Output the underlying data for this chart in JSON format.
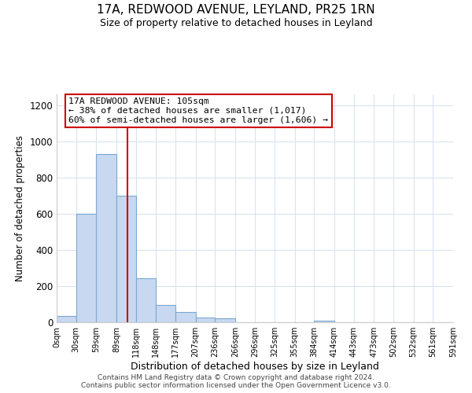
{
  "title": "17A, REDWOOD AVENUE, LEYLAND, PR25 1RN",
  "subtitle": "Size of property relative to detached houses in Leyland",
  "xlabel": "Distribution of detached houses by size in Leyland",
  "ylabel": "Number of detached properties",
  "bar_color": "#c8d8f0",
  "bar_edge_color": "#7aa8d0",
  "bin_edges": [
    0,
    29,
    59,
    89,
    118,
    148,
    177,
    207,
    236,
    266,
    296,
    325,
    355,
    384,
    414,
    443,
    473,
    502,
    532,
    561,
    591
  ],
  "bar_heights": [
    35,
    600,
    930,
    700,
    245,
    95,
    55,
    25,
    20,
    0,
    0,
    0,
    0,
    10,
    0,
    0,
    0,
    0,
    0,
    0
  ],
  "tick_labels": [
    "0sqm",
    "30sqm",
    "59sqm",
    "89sqm",
    "118sqm",
    "148sqm",
    "177sqm",
    "207sqm",
    "236sqm",
    "266sqm",
    "296sqm",
    "325sqm",
    "355sqm",
    "384sqm",
    "414sqm",
    "443sqm",
    "473sqm",
    "502sqm",
    "532sqm",
    "561sqm",
    "591sqm"
  ],
  "vline_x": 105,
  "vline_color": "#cc0000",
  "annotation_line1": "17A REDWOOD AVENUE: 105sqm",
  "annotation_line2": "← 38% of detached houses are smaller (1,017)",
  "annotation_line3": "60% of semi-detached houses are larger (1,606) →",
  "ylim": [
    0,
    1260
  ],
  "yticks": [
    0,
    200,
    400,
    600,
    800,
    1000,
    1200
  ],
  "footer_line1": "Contains HM Land Registry data © Crown copyright and database right 2024.",
  "footer_line2": "Contains public sector information licensed under the Open Government Licence v3.0.",
  "background_color": "#ffffff",
  "grid_color": "#d8e4f0"
}
